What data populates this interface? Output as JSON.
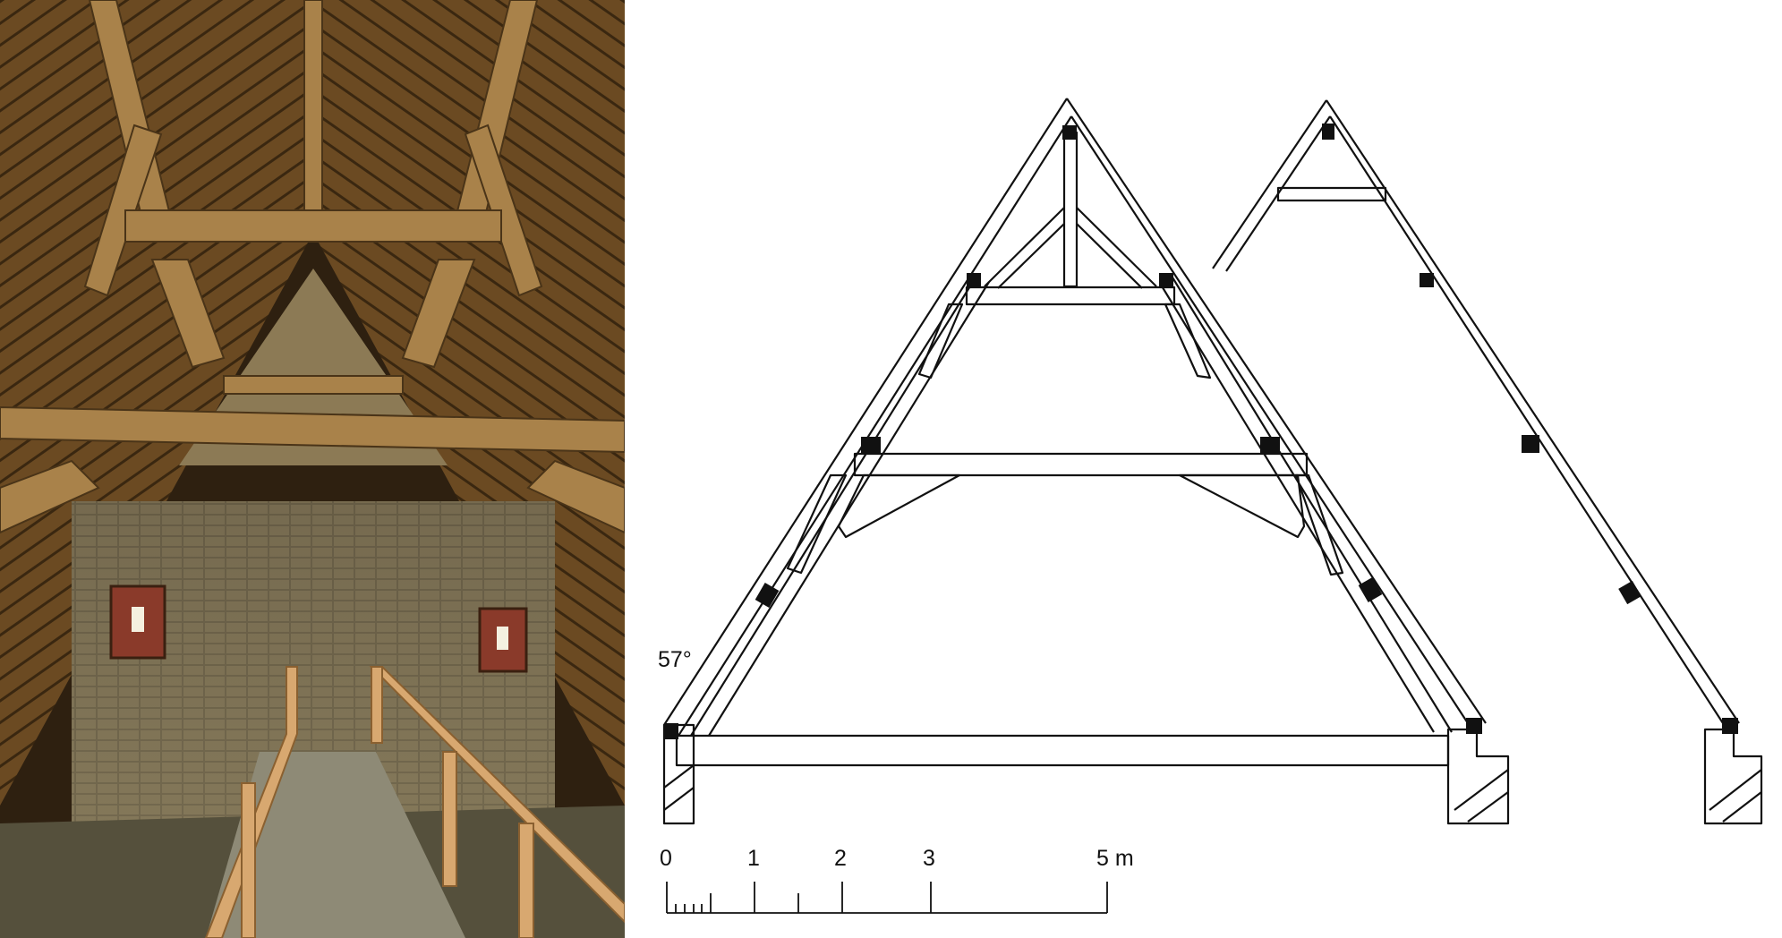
{
  "angle_label": "57°",
  "scale": {
    "tick_labels": [
      "0",
      "1",
      "2",
      "3",
      "5 m"
    ]
  }
}
